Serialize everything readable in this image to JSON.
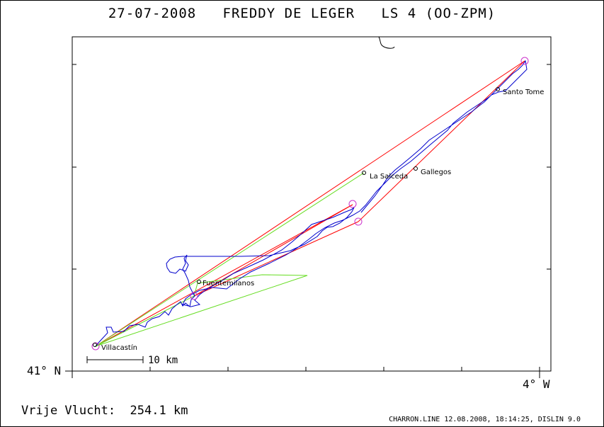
{
  "header": {
    "date": "27-07-2008",
    "pilot": "FREDDY DE LEGER",
    "glider": "LS 4 (OO-ZPM)"
  },
  "axes": {
    "lat_corner_label": "41° N",
    "lon_corner_label": "4° W"
  },
  "places": [
    {
      "name": "Villacastín"
    },
    {
      "name": "Fuentemilanos"
    },
    {
      "name": "La Salceda"
    },
    {
      "name": "Gallegos"
    },
    {
      "name": "Santo Tome"
    }
  ],
  "scale_bar": {
    "label": "10 km"
  },
  "summary": {
    "label": "Vrije Vlucht:",
    "value": "254.1 km"
  },
  "footer": {
    "credit": "CHARRON.LINE 12.08.2008, 18:14:25, DISLIN 9.0"
  },
  "colors": {
    "track": "#0000cc",
    "task_red": "#ff0000",
    "task_green": "#66dd22",
    "turnpoint": "#cc33cc",
    "frame": "#000000"
  }
}
